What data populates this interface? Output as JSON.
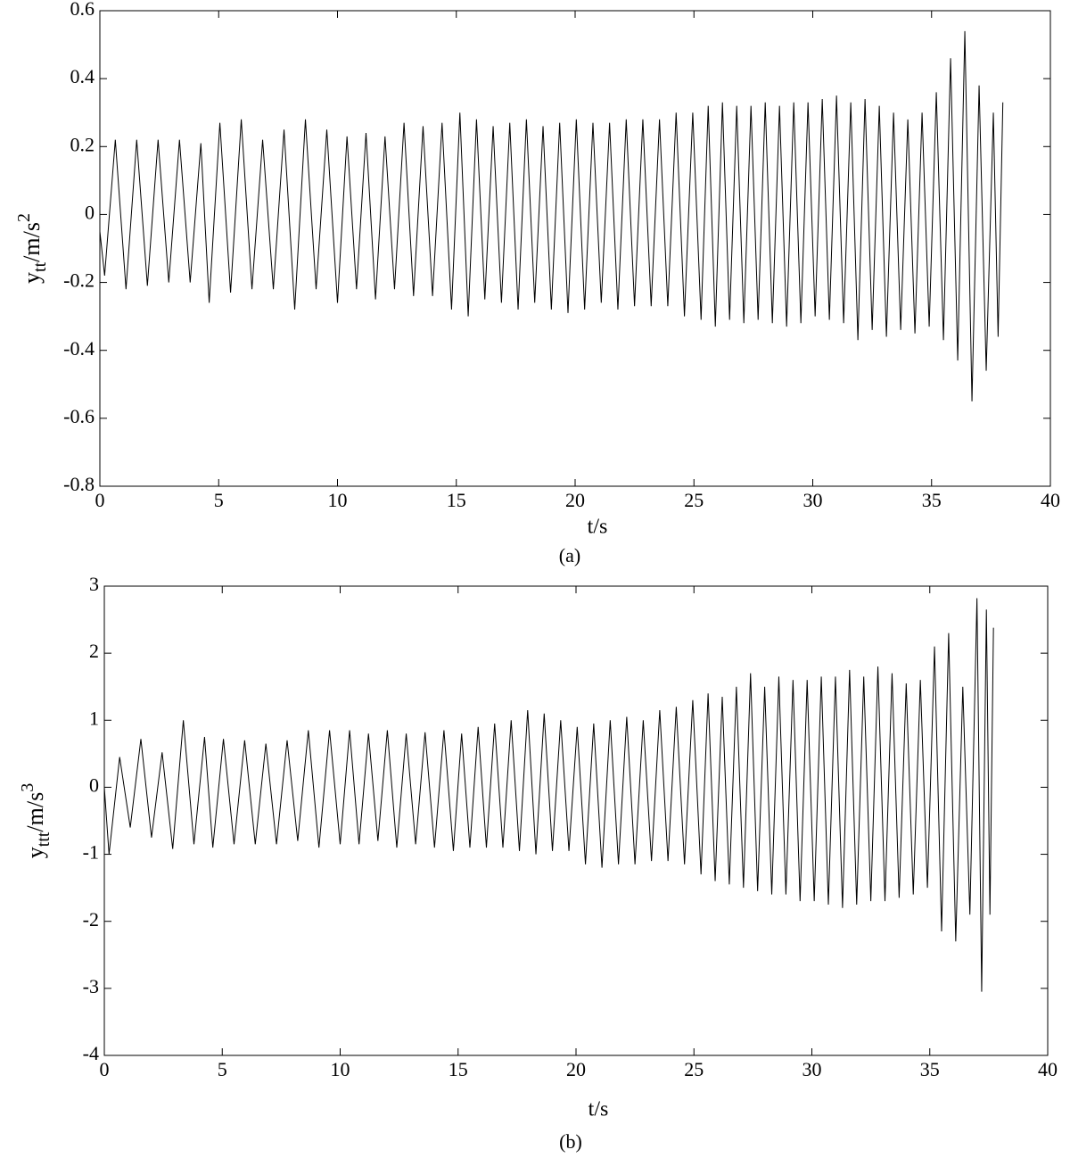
{
  "chart_data": [
    {
      "type": "line",
      "caption": "(a)",
      "xlabel": "t/s",
      "ylabel": {
        "base": "y",
        "sub": "tt",
        "unit": "/m/s",
        "sup": "2"
      },
      "xlim": [
        0,
        40
      ],
      "xticks": [
        0,
        5,
        10,
        15,
        20,
        25,
        30,
        35,
        40
      ],
      "ylim": [
        -0.8,
        0.6
      ],
      "yticks": [
        -0.8,
        -0.6,
        -0.4,
        -0.2,
        0,
        0.2,
        0.4,
        0.6
      ],
      "color": "#000000",
      "x": [
        0,
        0.2,
        0.65,
        1.1,
        1.55,
        2.0,
        2.45,
        2.9,
        3.35,
        3.8,
        4.25,
        4.6,
        5.05,
        5.5,
        5.95,
        6.4,
        6.85,
        7.3,
        7.75,
        8.2,
        8.65,
        9.1,
        9.55,
        10.0,
        10.4,
        10.8,
        11.2,
        11.6,
        12.0,
        12.4,
        12.8,
        13.2,
        13.6,
        14.0,
        14.4,
        14.8,
        15.15,
        15.5,
        15.85,
        16.2,
        16.55,
        16.9,
        17.25,
        17.6,
        17.95,
        18.3,
        18.65,
        19.0,
        19.35,
        19.7,
        20.05,
        20.4,
        20.75,
        21.1,
        21.45,
        21.8,
        22.15,
        22.5,
        22.85,
        23.2,
        23.55,
        23.9,
        24.25,
        24.6,
        24.95,
        25.3,
        25.6,
        25.9,
        26.2,
        26.5,
        26.8,
        27.1,
        27.4,
        27.7,
        28.0,
        28.3,
        28.6,
        28.9,
        29.2,
        29.5,
        29.8,
        30.1,
        30.4,
        30.7,
        31.0,
        31.3,
        31.6,
        31.9,
        32.2,
        32.5,
        32.8,
        33.1,
        33.4,
        33.7,
        34.0,
        34.3,
        34.6,
        34.9,
        35.2,
        35.5,
        35.8,
        36.1,
        36.4,
        36.7,
        37.0,
        37.3,
        37.6,
        37.8,
        38.0
      ],
      "values": [
        -0.05,
        -0.18,
        0.22,
        -0.22,
        0.22,
        -0.21,
        0.22,
        -0.2,
        0.22,
        -0.2,
        0.21,
        -0.26,
        0.27,
        -0.23,
        0.28,
        -0.22,
        0.22,
        -0.22,
        0.25,
        -0.28,
        0.28,
        -0.22,
        0.25,
        -0.26,
        0.23,
        -0.22,
        0.24,
        -0.25,
        0.23,
        -0.22,
        0.27,
        -0.24,
        0.26,
        -0.24,
        0.27,
        -0.28,
        0.3,
        -0.3,
        0.28,
        -0.25,
        0.26,
        -0.26,
        0.27,
        -0.28,
        0.28,
        -0.26,
        0.26,
        -0.28,
        0.27,
        -0.29,
        0.28,
        -0.28,
        0.27,
        -0.26,
        0.27,
        -0.28,
        0.28,
        -0.27,
        0.28,
        -0.27,
        0.28,
        -0.27,
        0.3,
        -0.3,
        0.3,
        -0.31,
        0.32,
        -0.33,
        0.33,
        -0.31,
        0.32,
        -0.32,
        0.32,
        -0.31,
        0.33,
        -0.32,
        0.32,
        -0.33,
        0.33,
        -0.32,
        0.33,
        -0.3,
        0.34,
        -0.31,
        0.35,
        -0.32,
        0.33,
        -0.37,
        0.34,
        -0.34,
        0.32,
        -0.36,
        0.3,
        -0.34,
        0.28,
        -0.35,
        0.3,
        -0.33,
        0.36,
        -0.37,
        0.46,
        -0.43,
        0.54,
        -0.55,
        0.38,
        -0.46,
        0.3,
        -0.36,
        0.33
      ]
    },
    {
      "type": "line",
      "caption": "(b)",
      "xlabel": "t/s",
      "ylabel": {
        "base": "y",
        "sub": "ttt",
        "unit": "/m/s",
        "sup": "3"
      },
      "xlim": [
        0,
        40
      ],
      "xticks": [
        0,
        5,
        10,
        15,
        20,
        25,
        30,
        35,
        40
      ],
      "ylim": [
        -4,
        3
      ],
      "yticks": [
        -4,
        -3,
        -2,
        -1,
        0,
        1,
        2,
        3
      ],
      "color": "#000000",
      "x": [
        0,
        0.2,
        0.65,
        1.1,
        1.55,
        2.0,
        2.45,
        2.9,
        3.35,
        3.8,
        4.25,
        4.6,
        5.05,
        5.5,
        5.95,
        6.4,
        6.85,
        7.3,
        7.75,
        8.2,
        8.65,
        9.1,
        9.55,
        10.0,
        10.4,
        10.8,
        11.2,
        11.6,
        12.0,
        12.4,
        12.8,
        13.2,
        13.6,
        14.0,
        14.4,
        14.8,
        15.15,
        15.5,
        15.85,
        16.2,
        16.55,
        16.9,
        17.25,
        17.6,
        17.95,
        18.3,
        18.65,
        19.0,
        19.35,
        19.7,
        20.05,
        20.4,
        20.75,
        21.1,
        21.45,
        21.8,
        22.15,
        22.5,
        22.85,
        23.2,
        23.55,
        23.9,
        24.25,
        24.6,
        24.95,
        25.3,
        25.6,
        25.9,
        26.2,
        26.5,
        26.8,
        27.1,
        27.4,
        27.7,
        28.0,
        28.3,
        28.6,
        28.9,
        29.2,
        29.5,
        29.8,
        30.1,
        30.4,
        30.7,
        31.0,
        31.3,
        31.6,
        31.9,
        32.2,
        32.5,
        32.8,
        33.1,
        33.4,
        33.7,
        34.0,
        34.3,
        34.6,
        34.9,
        35.2,
        35.5,
        35.8,
        36.1,
        36.4,
        36.7,
        37.0,
        37.2,
        37.4,
        37.55,
        37.7
      ],
      "values": [
        0,
        -1.0,
        0.45,
        -0.6,
        0.72,
        -0.75,
        0.52,
        -0.92,
        1.0,
        -0.85,
        0.75,
        -0.9,
        0.72,
        -0.85,
        0.7,
        -0.85,
        0.65,
        -0.85,
        0.7,
        -0.8,
        0.85,
        -0.9,
        0.85,
        -0.85,
        0.85,
        -0.85,
        0.8,
        -0.8,
        0.85,
        -0.9,
        0.8,
        -0.85,
        0.82,
        -0.9,
        0.85,
        -0.95,
        0.8,
        -0.9,
        0.9,
        -0.9,
        0.95,
        -0.9,
        1.0,
        -0.95,
        1.15,
        -1.0,
        1.1,
        -0.95,
        1.0,
        -0.95,
        0.9,
        -1.15,
        0.95,
        -1.2,
        1.0,
        -1.15,
        1.05,
        -1.15,
        1.0,
        -1.1,
        1.15,
        -1.1,
        1.2,
        -1.15,
        1.3,
        -1.3,
        1.4,
        -1.4,
        1.35,
        -1.45,
        1.5,
        -1.5,
        1.7,
        -1.55,
        1.5,
        -1.6,
        1.65,
        -1.6,
        1.6,
        -1.7,
        1.6,
        -1.7,
        1.65,
        -1.75,
        1.65,
        -1.8,
        1.75,
        -1.75,
        1.65,
        -1.7,
        1.8,
        -1.7,
        1.7,
        -1.65,
        1.55,
        -1.6,
        1.6,
        -1.5,
        2.1,
        -2.15,
        2.3,
        -2.3,
        1.5,
        -1.9,
        2.82,
        -3.05,
        2.65,
        -1.9,
        2.38
      ]
    }
  ]
}
